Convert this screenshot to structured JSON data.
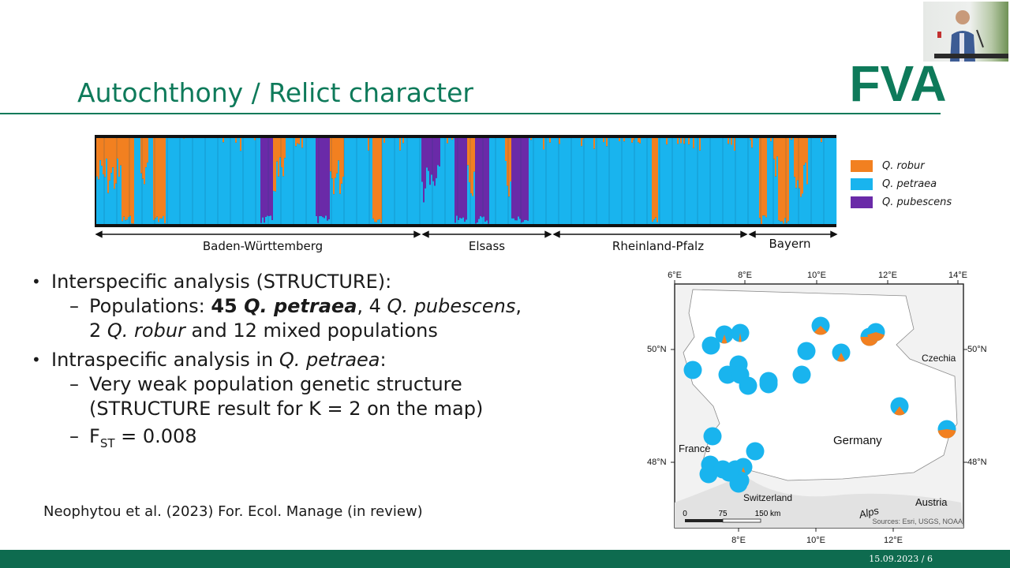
{
  "slide": {
    "title": "Autochthony / Relict character",
    "logo_text": "FVA",
    "footer_date": "15.09.2023",
    "footer_sep": "/",
    "footer_page": "6",
    "reference": "Neophytou et al. (2023) For. Ecol. Manage (in review)"
  },
  "legend": [
    {
      "label": "Q. robur",
      "color": "#f28020"
    },
    {
      "label": "Q. petraea",
      "color": "#19b4ee"
    },
    {
      "label": "Q. pubescens",
      "color": "#6a2aa8"
    }
  ],
  "regions": [
    "Baden-Württemberg",
    "Elsass",
    "Rheinland-Pfalz",
    "Bayern"
  ],
  "bullets": {
    "b1": "Interspecific analysis (STRUCTURE):",
    "b1_sub": {
      "a": "Populations: ",
      "b": "45 ",
      "c": "Q. petraea",
      "d": ", 4 ",
      "e": "Q. pubescens",
      "f": ",",
      "g": "2 ",
      "h": "Q. robur",
      "i": " and 12 mixed populations"
    },
    "b2_a": "Intraspecific analysis in ",
    "b2_b": "Q. petraea",
    "b2_c": ":",
    "b2_sub1_l1": "Very weak population genetic structure",
    "b2_sub1_l2": "(STRUCTURE result for K = 2 on the map)",
    "b2_sub2_f": "F",
    "b2_sub2_st": "ST",
    "b2_sub2_val": " = 0.008",
    "dash": "–",
    "dot": "•"
  },
  "map": {
    "lon_top": [
      "6°E",
      "8°E",
      "10°E",
      "12°E",
      "14°E"
    ],
    "lon_bottom": [
      "8°E",
      "10°E",
      "12°E"
    ],
    "lat_left": [
      "50°N",
      "48°N"
    ],
    "lat_right": [
      "50°N",
      "48°N"
    ],
    "labels": {
      "czechia": "Czechia",
      "germany": "Germany",
      "france": "France",
      "switzerland": "Switzerland",
      "austria": "Austria",
      "alps": "Alps"
    },
    "scale": [
      "0",
      "75",
      "150 km"
    ],
    "sources": "Sources: Esri, USGS, NOAA"
  }
}
